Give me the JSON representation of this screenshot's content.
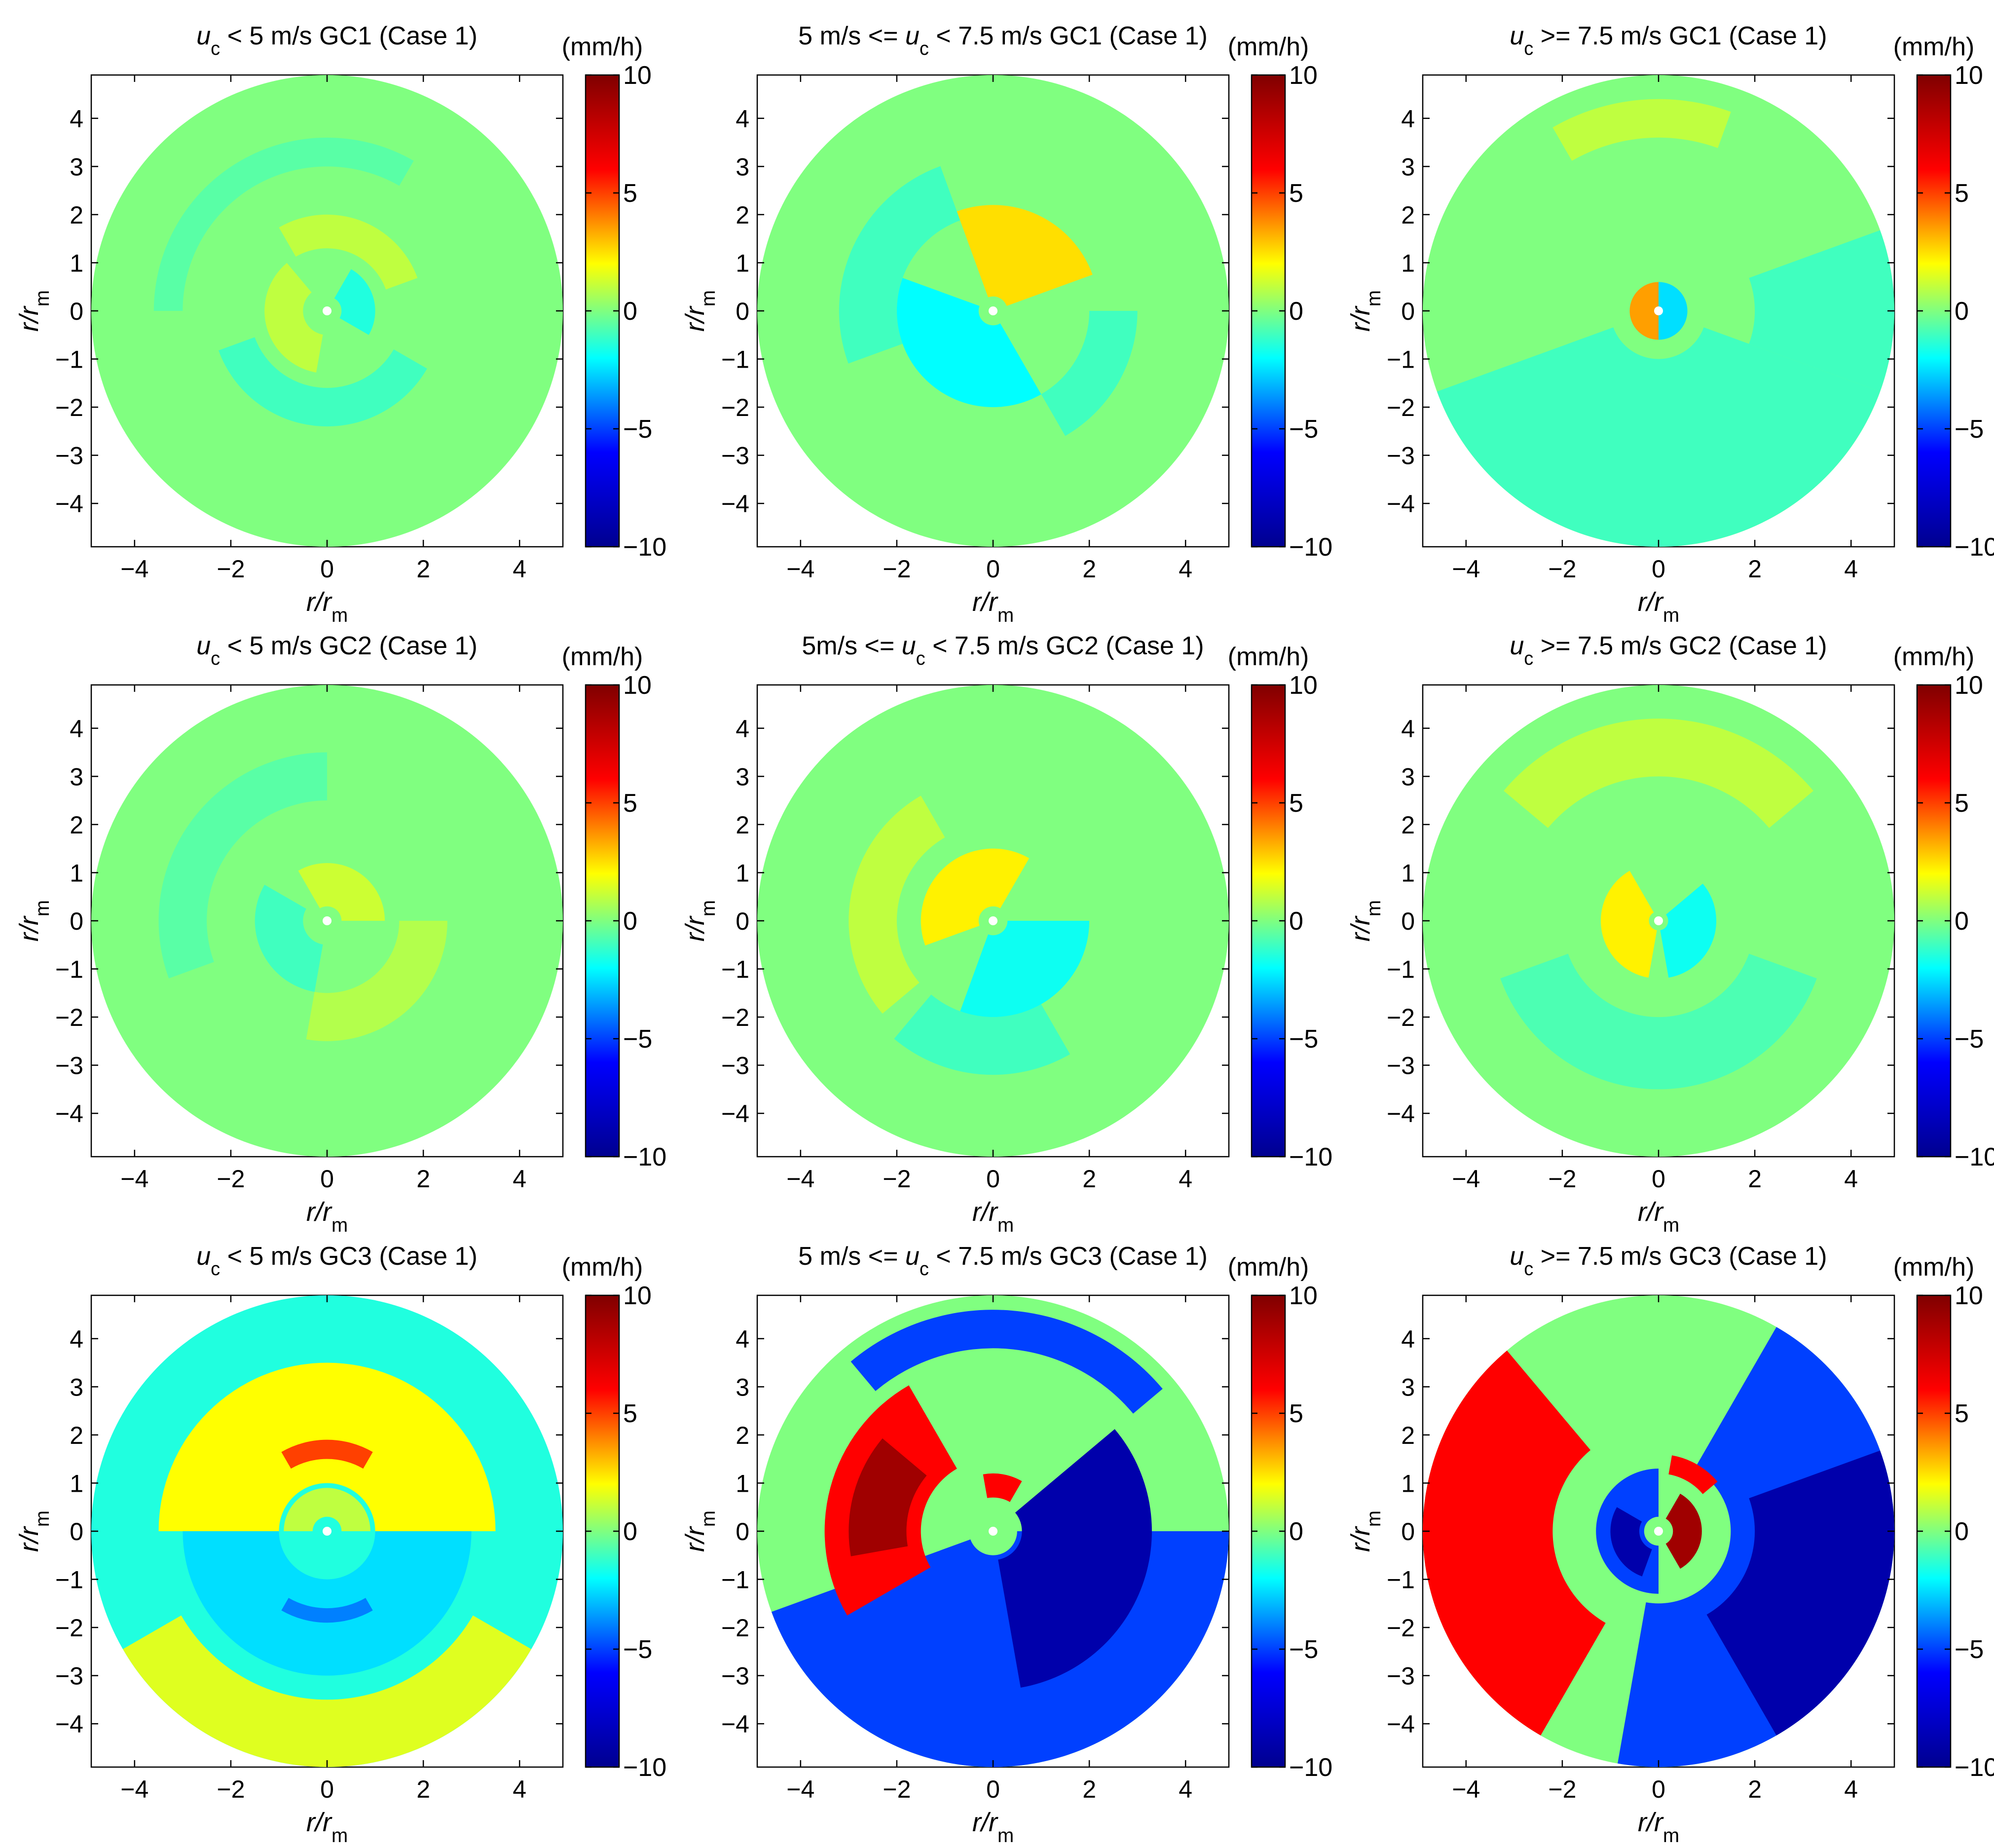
{
  "colors": {
    "colormap": "jet",
    "jet_stops": [
      "#00008f",
      "#0000ff",
      "#00ffff",
      "#ffff00",
      "#ff0000",
      "#800000"
    ],
    "background": "#ffffff",
    "axis": "#000000",
    "center_marker": "#ffffff"
  },
  "chart_data": [
    {
      "type": "heatmap",
      "plot": "polar contour",
      "title_parts": [
        "u",
        "c",
        " < 5 m/s GC1 (Case 1)"
      ],
      "xlabel_parts": [
        "r/r",
        "m"
      ],
      "ylabel_parts": [
        "r/r",
        "m"
      ],
      "xticks": [
        -4,
        -2,
        0,
        2,
        4
      ],
      "yticks": [
        -4,
        -3,
        -2,
        -1,
        0,
        1,
        2,
        3,
        4
      ],
      "xlim": [
        -4.9,
        4.9
      ],
      "ylim": [
        -4.9,
        4.9
      ],
      "radius": 4.9,
      "colorbar": {
        "label": "(mm/h)",
        "range": [
          -10,
          10
        ],
        "ticks": [
          -10,
          -5,
          0,
          5,
          10
        ]
      },
      "base_value": 0,
      "features": [
        {
          "r_in": 0.3,
          "r_out": 1.0,
          "theta_start": 330,
          "theta_end": 420,
          "value": -1.5
        },
        {
          "r_in": 0.5,
          "r_out": 1.3,
          "theta_start": 130,
          "theta_end": 260,
          "value": 1.0
        },
        {
          "r_in": 1.3,
          "r_out": 2.0,
          "theta_start": 20,
          "theta_end": 120,
          "value": 1.0
        },
        {
          "r_in": 1.6,
          "r_out": 2.4,
          "theta_start": 200,
          "theta_end": 330,
          "value": -1.0
        },
        {
          "r_in": 3.0,
          "r_out": 3.6,
          "theta_start": 60,
          "theta_end": 180,
          "value": -0.6
        }
      ]
    },
    {
      "type": "heatmap",
      "plot": "polar contour",
      "title_parts": [
        "5 m/s <= u",
        "c",
        " < 7.5 m/s GC1 (Case 1)"
      ],
      "xlabel_parts": [
        "r/r",
        "m"
      ],
      "ylabel_parts": [
        "r/r",
        "m"
      ],
      "xticks": [
        -4,
        -2,
        0,
        2,
        4
      ],
      "yticks": [
        -4,
        -3,
        -2,
        -1,
        0,
        1,
        2,
        3,
        4
      ],
      "xlim": [
        -4.9,
        4.9
      ],
      "ylim": [
        -4.9,
        4.9
      ],
      "radius": 4.9,
      "colorbar": {
        "label": "(mm/h)",
        "range": [
          -10,
          10
        ],
        "ticks": [
          -10,
          -5,
          0,
          5,
          10
        ]
      },
      "base_value": 0,
      "features": [
        {
          "r_in": 0.3,
          "r_out": 2.2,
          "theta_start": 20,
          "theta_end": 110,
          "value": 2.5
        },
        {
          "r_in": 0.3,
          "r_out": 2.0,
          "theta_start": 160,
          "theta_end": 300,
          "value": -2.0
        },
        {
          "r_in": 2.0,
          "r_out": 3.2,
          "theta_start": 110,
          "theta_end": 200,
          "value": -1.0
        },
        {
          "r_in": 2.0,
          "r_out": 3.0,
          "theta_start": 300,
          "theta_end": 360,
          "value": -1.0
        }
      ]
    },
    {
      "type": "heatmap",
      "plot": "polar contour",
      "title_parts": [
        "u",
        "c",
        " >= 7.5 m/s GC1 (Case 1)"
      ],
      "xlabel_parts": [
        "r/r",
        "m"
      ],
      "ylabel_parts": [
        "r/r",
        "m"
      ],
      "xticks": [
        -4,
        -2,
        0,
        2,
        4
      ],
      "yticks": [
        -4,
        -3,
        -2,
        -1,
        0,
        1,
        2,
        3,
        4
      ],
      "xlim": [
        -4.9,
        4.9
      ],
      "ylim": [
        -4.9,
        4.9
      ],
      "radius": 4.9,
      "colorbar": {
        "label": "(mm/h)",
        "range": [
          -10,
          10
        ],
        "ticks": [
          -10,
          -5,
          0,
          5,
          10
        ]
      },
      "base_value": 0,
      "features": [
        {
          "r_in": 0.0,
          "r_out": 0.6,
          "theta_start": 90,
          "theta_end": 270,
          "value": 3.5
        },
        {
          "r_in": 0.0,
          "r_out": 0.6,
          "theta_start": 270,
          "theta_end": 450,
          "value": -2.5
        },
        {
          "r_in": 1.0,
          "r_out": 4.9,
          "theta_start": 200,
          "theta_end": 340,
          "value": -1.0
        },
        {
          "r_in": 2.0,
          "r_out": 4.9,
          "theta_start": 340,
          "theta_end": 380,
          "value": -1.0
        },
        {
          "r_in": 3.6,
          "r_out": 4.4,
          "theta_start": 70,
          "theta_end": 120,
          "value": 1.0
        }
      ]
    },
    {
      "type": "heatmap",
      "plot": "polar contour",
      "title_parts": [
        "u",
        "c",
        " < 5 m/s GC2 (Case 1)"
      ],
      "xlabel_parts": [
        "r/r",
        "m"
      ],
      "ylabel_parts": [
        "r/r",
        "m"
      ],
      "xticks": [
        -4,
        -2,
        0,
        2,
        4
      ],
      "yticks": [
        -4,
        -3,
        -2,
        -1,
        0,
        1,
        2,
        3,
        4
      ],
      "xlim": [
        -4.9,
        4.9
      ],
      "ylim": [
        -4.9,
        4.9
      ],
      "radius": 4.9,
      "colorbar": {
        "label": "(mm/h)",
        "range": [
          -10,
          10
        ],
        "ticks": [
          -10,
          -5,
          0,
          5,
          10
        ]
      },
      "base_value": 0,
      "features": [
        {
          "r_in": 0.3,
          "r_out": 1.2,
          "theta_start": 0,
          "theta_end": 120,
          "value": 1.2
        },
        {
          "r_in": 0.5,
          "r_out": 1.5,
          "theta_start": 150,
          "theta_end": 260,
          "value": -1.0
        },
        {
          "r_in": 1.5,
          "r_out": 2.5,
          "theta_start": 260,
          "theta_end": 360,
          "value": 0.8
        },
        {
          "r_in": 2.5,
          "r_out": 3.5,
          "theta_start": 90,
          "theta_end": 200,
          "value": -0.6
        }
      ]
    },
    {
      "type": "heatmap",
      "plot": "polar contour",
      "title_parts": [
        "5m/s <= u",
        "c",
        " < 7.5 m/s GC2 (Case 1)"
      ],
      "xlabel_parts": [
        "r/r",
        "m"
      ],
      "ylabel_parts": [
        "r/r",
        "m"
      ],
      "xticks": [
        -4,
        -2,
        0,
        2,
        4
      ],
      "yticks": [
        -4,
        -3,
        -2,
        -1,
        0,
        1,
        2,
        3,
        4
      ],
      "xlim": [
        -4.9,
        4.9
      ],
      "ylim": [
        -4.9,
        4.9
      ],
      "radius": 4.9,
      "colorbar": {
        "label": "(mm/h)",
        "range": [
          -10,
          10
        ],
        "ticks": [
          -10,
          -5,
          0,
          5,
          10
        ]
      },
      "base_value": 0,
      "features": [
        {
          "r_in": 0.3,
          "r_out": 1.5,
          "theta_start": 60,
          "theta_end": 200,
          "value": 2.2
        },
        {
          "r_in": 0.3,
          "r_out": 2.0,
          "theta_start": 250,
          "theta_end": 360,
          "value": -1.8
        },
        {
          "r_in": 2.0,
          "r_out": 3.0,
          "theta_start": 120,
          "theta_end": 220,
          "value": 1.0
        },
        {
          "r_in": 2.0,
          "r_out": 3.2,
          "theta_start": 230,
          "theta_end": 300,
          "value": -1.0
        }
      ]
    },
    {
      "type": "heatmap",
      "plot": "polar contour",
      "title_parts": [
        "u",
        "c",
        " >= 7.5 m/s GC2 (Case 1)"
      ],
      "xlabel_parts": [
        "r/r",
        "m"
      ],
      "ylabel_parts": [
        "r/r",
        "m"
      ],
      "xticks": [
        -4,
        -2,
        0,
        2,
        4
      ],
      "yticks": [
        -4,
        -3,
        -2,
        -1,
        0,
        1,
        2,
        3,
        4
      ],
      "xlim": [
        -4.9,
        4.9
      ],
      "ylim": [
        -4.9,
        4.9
      ],
      "radius": 4.9,
      "colorbar": {
        "label": "(mm/h)",
        "range": [
          -10,
          10
        ],
        "ticks": [
          -10,
          -5,
          0,
          5,
          10
        ]
      },
      "base_value": 0,
      "features": [
        {
          "r_in": 0.2,
          "r_out": 1.2,
          "theta_start": 120,
          "theta_end": 260,
          "value": 2.2
        },
        {
          "r_in": 0.2,
          "r_out": 1.2,
          "theta_start": 280,
          "theta_end": 400,
          "value": -1.8
        },
        {
          "r_in": 3.0,
          "r_out": 4.2,
          "theta_start": 40,
          "theta_end": 140,
          "value": 1.0
        },
        {
          "r_in": 2.0,
          "r_out": 3.5,
          "theta_start": 200,
          "theta_end": 340,
          "value": -0.8
        }
      ]
    },
    {
      "type": "heatmap",
      "plot": "polar contour",
      "title_parts": [
        "u",
        "c",
        " < 5 m/s GC3 (Case 1)"
      ],
      "xlabel_parts": [
        "r/r",
        "m"
      ],
      "ylabel_parts": [
        "r/r",
        "m"
      ],
      "xticks": [
        -4,
        -2,
        0,
        2,
        4
      ],
      "yticks": [
        -4,
        -3,
        -2,
        -1,
        0,
        1,
        2,
        3,
        4
      ],
      "xlim": [
        -4.9,
        4.9
      ],
      "ylim": [
        -4.9,
        4.9
      ],
      "radius": 4.9,
      "colorbar": {
        "label": "(mm/h)",
        "range": [
          -10,
          10
        ],
        "ticks": [
          -10,
          -5,
          0,
          5,
          10
        ]
      },
      "base_value": -1.5,
      "features": [
        {
          "r_in": 1.0,
          "r_out": 3.5,
          "theta_start": 0,
          "theta_end": 180,
          "value": 2.0
        },
        {
          "r_in": 1.5,
          "r_out": 1.9,
          "theta_start": 60,
          "theta_end": 120,
          "value": 5.0
        },
        {
          "r_in": 1.0,
          "r_out": 3.0,
          "theta_start": 180,
          "theta_end": 360,
          "value": -2.5
        },
        {
          "r_in": 1.6,
          "r_out": 1.9,
          "theta_start": 240,
          "theta_end": 300,
          "value": -4.0
        },
        {
          "r_in": 3.5,
          "r_out": 4.9,
          "theta_start": 210,
          "theta_end": 330,
          "value": 1.5
        },
        {
          "r_in": 0.3,
          "r_out": 0.9,
          "theta_start": 0,
          "theta_end": 180,
          "value": 1.0
        }
      ]
    },
    {
      "type": "heatmap",
      "plot": "polar contour",
      "title_parts": [
        "5 m/s <= u",
        "c",
        " < 7.5 m/s GC3 (Case 1)"
      ],
      "xlabel_parts": [
        "r/r",
        "m"
      ],
      "ylabel_parts": [
        "r/r",
        "m"
      ],
      "xticks": [
        -4,
        -2,
        0,
        2,
        4
      ],
      "yticks": [
        -4,
        -3,
        -2,
        -1,
        0,
        1,
        2,
        3,
        4
      ],
      "xlim": [
        -4.9,
        4.9
      ],
      "ylim": [
        -4.9,
        4.9
      ],
      "radius": 4.9,
      "colorbar": {
        "label": "(mm/h)",
        "range": [
          -10,
          10
        ],
        "ticks": [
          -10,
          -5,
          0,
          5,
          10
        ]
      },
      "base_value": 0,
      "features": [
        {
          "r_in": 0.5,
          "r_out": 4.9,
          "theta_start": 200,
          "theta_end": 360,
          "value": -5.0
        },
        {
          "r_in": 0.6,
          "r_out": 3.3,
          "theta_start": 280,
          "theta_end": 400,
          "value": -9.0
        },
        {
          "r_in": 1.5,
          "r_out": 3.5,
          "theta_start": 120,
          "theta_end": 210,
          "value": 6.0
        },
        {
          "r_in": 1.8,
          "r_out": 3.0,
          "theta_start": 140,
          "theta_end": 190,
          "value": 9.0
        },
        {
          "r_in": 3.8,
          "r_out": 4.6,
          "theta_start": 40,
          "theta_end": 130,
          "value": -5.0
        },
        {
          "r_in": 0.7,
          "r_out": 1.2,
          "theta_start": 60,
          "theta_end": 100,
          "value": 6.0
        }
      ]
    },
    {
      "type": "heatmap",
      "plot": "polar contour",
      "title_parts": [
        "u",
        "c",
        " >= 7.5 m/s GC3 (Case 1)"
      ],
      "xlabel_parts": [
        "r/r",
        "m"
      ],
      "ylabel_parts": [
        "r/r",
        "m"
      ],
      "xticks": [
        -4,
        -2,
        0,
        2,
        4
      ],
      "yticks": [
        -4,
        -3,
        -2,
        -1,
        0,
        1,
        2,
        3,
        4
      ],
      "xlim": [
        -4.9,
        4.9
      ],
      "ylim": [
        -4.9,
        4.9
      ],
      "radius": 4.9,
      "colorbar": {
        "label": "(mm/h)",
        "range": [
          -10,
          10
        ],
        "ticks": [
          -10,
          -5,
          0,
          5,
          10
        ]
      },
      "base_value": 0,
      "features": [
        {
          "r_in": 1.5,
          "r_out": 4.9,
          "theta_start": 260,
          "theta_end": 420,
          "value": -5.0
        },
        {
          "r_in": 2.0,
          "r_out": 4.9,
          "theta_start": 300,
          "theta_end": 380,
          "value": -9.0
        },
        {
          "r_in": 2.2,
          "r_out": 4.9,
          "theta_start": 130,
          "theta_end": 240,
          "value": 6.0
        },
        {
          "r_in": 0.3,
          "r_out": 1.3,
          "theta_start": 90,
          "theta_end": 270,
          "value": -5.0
        },
        {
          "r_in": 0.4,
          "r_out": 1.0,
          "theta_start": 150,
          "theta_end": 250,
          "value": -9.0
        },
        {
          "r_in": 0.3,
          "r_out": 0.9,
          "theta_start": 300,
          "theta_end": 420,
          "value": 9.0
        },
        {
          "r_in": 1.2,
          "r_out": 1.6,
          "theta_start": 40,
          "theta_end": 80,
          "value": 6.0
        }
      ]
    }
  ]
}
